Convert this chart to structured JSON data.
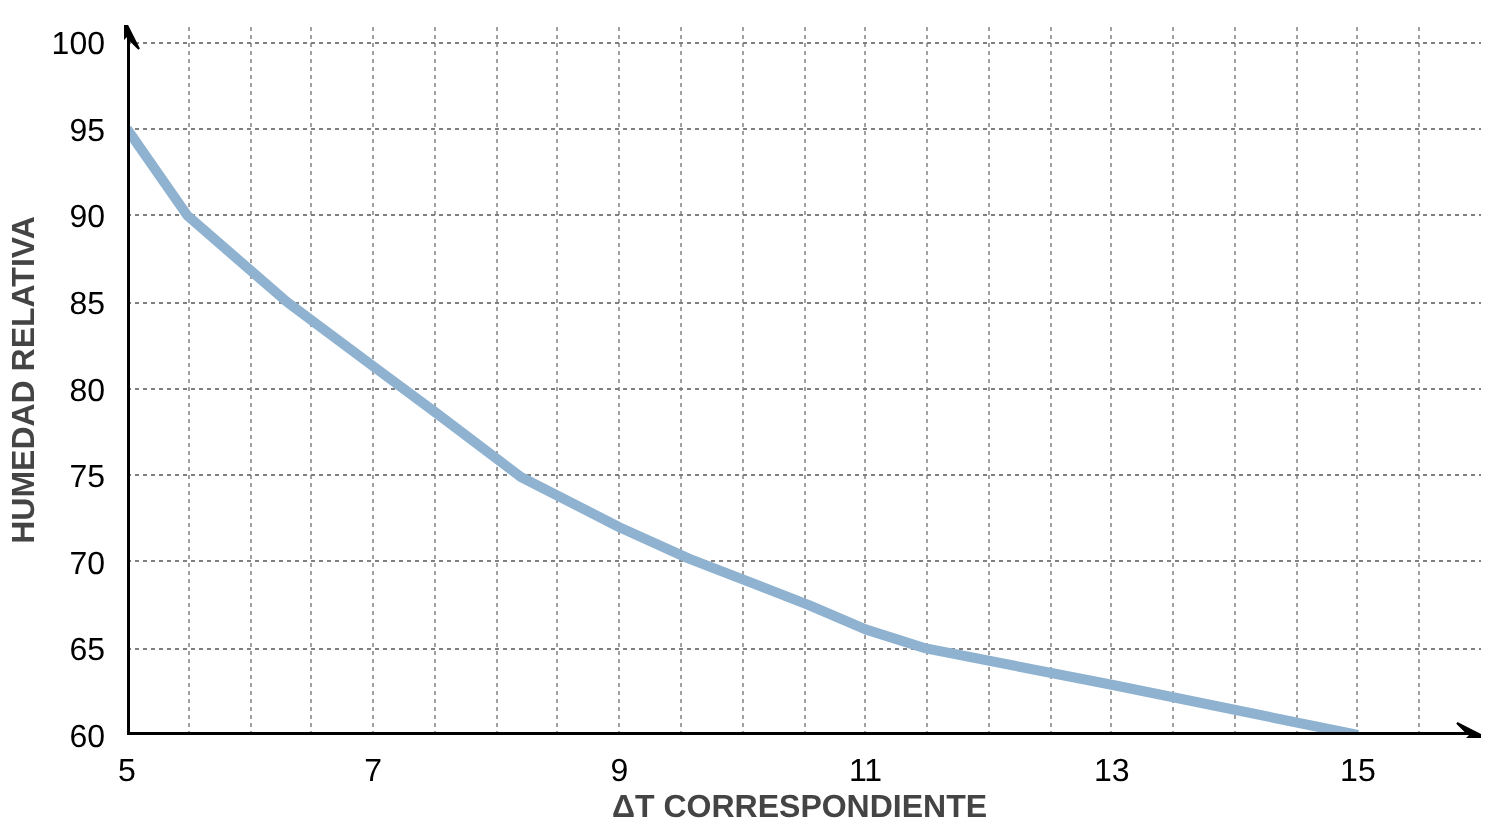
{
  "chart_data": {
    "type": "line",
    "xlabel": "ΔT  CORRESPONDIENTE",
    "ylabel": "HUMEDAD RELATIVA",
    "x": [
      5,
      5.49,
      6.3,
      7,
      7.53,
      8.2,
      9,
      9.56,
      10.18,
      10.54,
      11,
      11.49,
      13,
      15
    ],
    "series": [
      {
        "color": "#8eb2d0",
        "values": [
          95,
          90,
          85,
          81.3,
          78.5,
          74.9,
          72,
          70.2,
          68.5,
          67.5,
          66.1,
          65,
          62.9,
          60
        ]
      }
    ],
    "xlim": [
      5,
      16
    ],
    "ylim": [
      60,
      101
    ],
    "xticks": [
      5,
      {
        "value": 5.5,
        "label": null
      },
      {
        "value": 6,
        "label": null
      },
      {
        "value": 6.5,
        "label": null
      },
      7,
      {
        "value": 7.5,
        "label": null
      },
      {
        "value": 8,
        "label": null
      },
      {
        "value": 8.5,
        "label": null
      },
      9,
      {
        "value": 9.5,
        "label": null
      },
      {
        "value": 10,
        "label": null
      },
      {
        "value": 10.5,
        "label": null
      },
      11,
      {
        "value": 11.5,
        "label": null
      },
      {
        "value": 12,
        "label": null
      },
      {
        "value": 12.5,
        "label": null
      },
      13,
      {
        "value": 13.5,
        "label": null
      },
      {
        "value": 14,
        "label": null
      },
      {
        "value": 14.5,
        "label": null
      },
      15,
      {
        "value": 15.5,
        "label": null
      }
    ],
    "yticks": [
      60,
      65,
      70,
      75,
      80,
      85,
      90,
      95,
      100
    ],
    "grid": true,
    "marker": "none",
    "line_style": "solid"
  }
}
